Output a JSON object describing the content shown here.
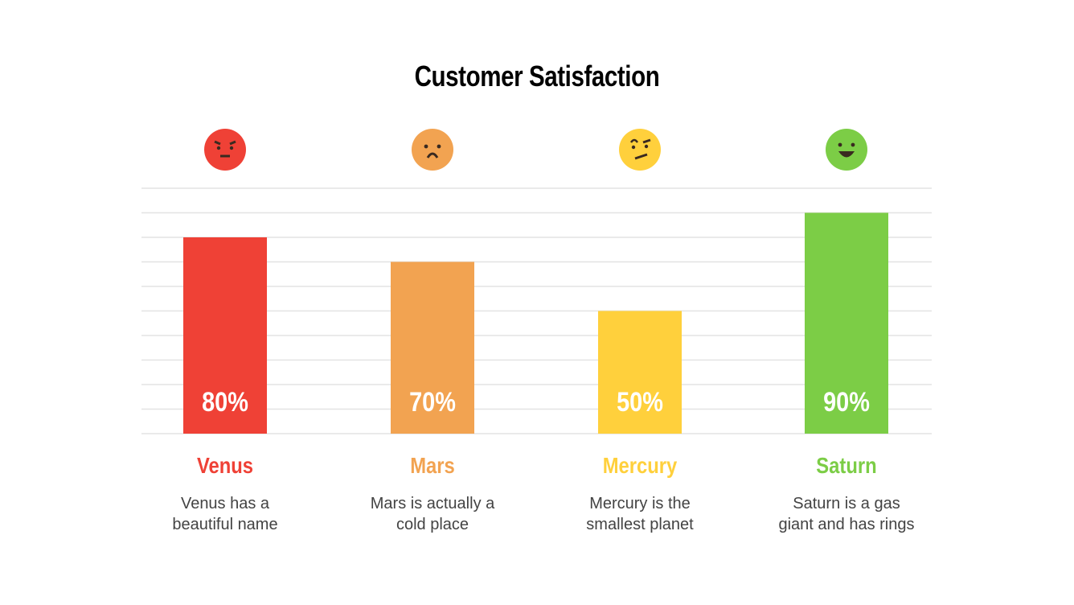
{
  "chart_data": {
    "type": "bar",
    "title": "Customer Satisfaction",
    "categories": [
      "Venus",
      "Mars",
      "Mercury",
      "Saturn"
    ],
    "values": [
      80,
      70,
      50,
      90
    ],
    "value_labels": [
      "80%",
      "70%",
      "50%",
      "90%"
    ],
    "descriptions": [
      "Venus has a beautiful name",
      "Mars is actually a cold place",
      "Mercury is the smallest planet",
      "Saturn is a gas giant and has rings"
    ],
    "description_lines": [
      [
        "Venus has a",
        "beautiful name"
      ],
      [
        "Mars is actually a",
        "cold place"
      ],
      [
        "Mercury is the",
        "smallest planet"
      ],
      [
        "Saturn is a gas",
        "giant and has rings"
      ]
    ],
    "emoji_icons": [
      "angry-face-icon",
      "frowning-face-icon",
      "skeptical-face-icon",
      "grinning-face-icon"
    ],
    "colors": [
      "#ef4136",
      "#f2a351",
      "#ffd03c",
      "#7ccd46"
    ],
    "ylim": [
      0,
      100
    ],
    "grid": true,
    "grid_step": 10,
    "xlabel": "",
    "ylabel": ""
  }
}
